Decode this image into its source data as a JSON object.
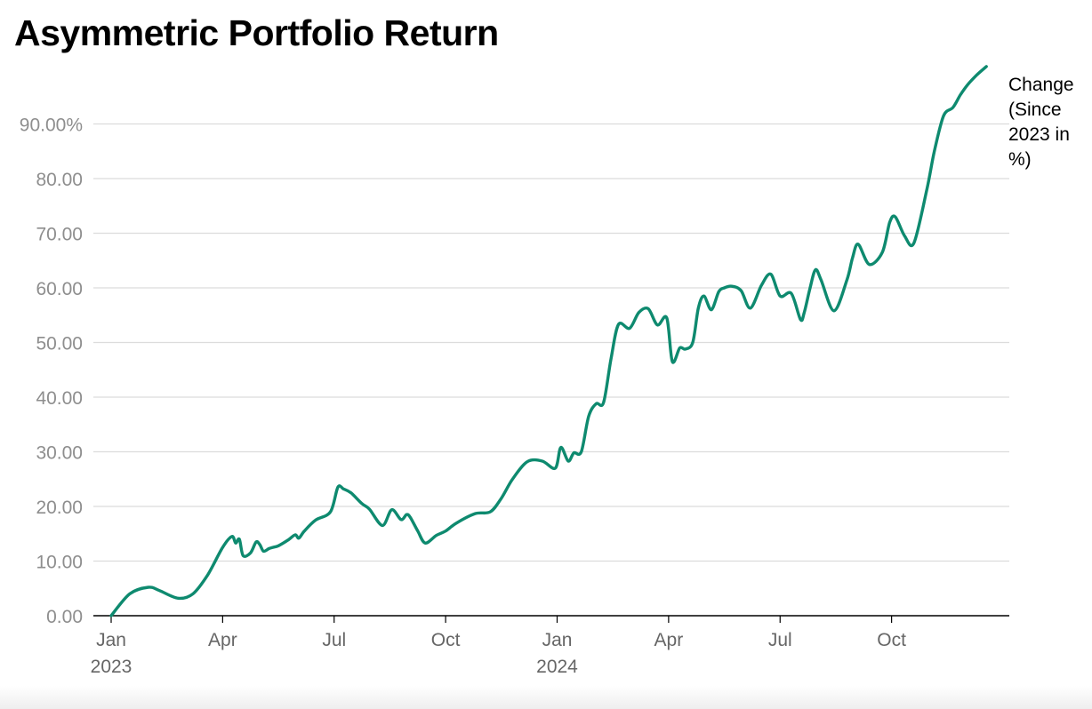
{
  "chart_data": {
    "type": "line",
    "title": "Asymmetric Portfolio Return",
    "xlabel": "",
    "ylabel": "",
    "ylim": [
      0,
      100
    ],
    "yticks": [
      {
        "value": 0,
        "label": "0.00"
      },
      {
        "value": 10,
        "label": "10.00"
      },
      {
        "value": 20,
        "label": "20.00"
      },
      {
        "value": 30,
        "label": "30.00"
      },
      {
        "value": 40,
        "label": "40.00"
      },
      {
        "value": 50,
        "label": "50.00"
      },
      {
        "value": 60,
        "label": "60.00"
      },
      {
        "value": 70,
        "label": "70.00"
      },
      {
        "value": 80,
        "label": "80.00"
      },
      {
        "value": 90,
        "label": "90.00%"
      }
    ],
    "xlim": [
      0,
      24
    ],
    "xticks": [
      {
        "value": 0,
        "label": "Jan",
        "sublabel": "2023"
      },
      {
        "value": 3,
        "label": "Apr"
      },
      {
        "value": 6,
        "label": "Jul"
      },
      {
        "value": 9,
        "label": "Oct"
      },
      {
        "value": 12,
        "label": "Jan",
        "sublabel": "2024"
      },
      {
        "value": 15,
        "label": "Apr"
      },
      {
        "value": 18,
        "label": "Jul"
      },
      {
        "value": 21,
        "label": "Oct"
      }
    ],
    "series": [
      {
        "name": "Change (Since 2023 in %)",
        "label_lines": [
          "Change",
          "(Since",
          "2023 in",
          "%)"
        ],
        "color": "#0e8a6f",
        "x": [
          0,
          0.5,
          1,
          1.3,
          1.8,
          2.2,
          2.6,
          3.0,
          3.25,
          3.35,
          3.45,
          3.55,
          3.75,
          3.9,
          4.0,
          4.1,
          4.25,
          4.35,
          4.5,
          4.75,
          4.95,
          5.05,
          5.2,
          5.5,
          5.9,
          6.1,
          6.25,
          6.45,
          6.75,
          6.95,
          7.3,
          7.55,
          7.8,
          7.95,
          8.05,
          8.25,
          8.45,
          8.75,
          9.0,
          9.3,
          9.8,
          10.2,
          10.5,
          10.8,
          11.2,
          11.6,
          11.95,
          12.1,
          12.3,
          12.45,
          12.65,
          12.85,
          13.05,
          13.25,
          13.45,
          13.65,
          13.95,
          14.2,
          14.45,
          14.7,
          14.95,
          15.1,
          15.3,
          15.45,
          15.65,
          15.8,
          15.95,
          16.15,
          16.35,
          16.5,
          16.7,
          16.95,
          17.2,
          17.5,
          17.75,
          18.0,
          18.3,
          18.55,
          18.65,
          18.8,
          18.95,
          19.1,
          19.45,
          19.8,
          19.95,
          20.1,
          20.4,
          20.75,
          20.95,
          21.1,
          21.35,
          21.6,
          21.95,
          22.15,
          22.4,
          22.65,
          22.85,
          23.05,
          23.3,
          23.55
        ],
        "y": [
          0,
          4,
          5.2,
          4.6,
          3.2,
          4.0,
          7.5,
          12.5,
          14.5,
          13.3,
          14.0,
          11.0,
          11.5,
          13.5,
          13.0,
          11.8,
          12.3,
          12.5,
          12.8,
          13.8,
          14.8,
          14.2,
          15.5,
          17.5,
          19.0,
          23.5,
          23.2,
          22.5,
          20.5,
          19.5,
          16.5,
          19.4,
          17.6,
          18.5,
          18.0,
          15.5,
          13.3,
          14.7,
          15.5,
          17.0,
          18.7,
          19.0,
          21.5,
          25.0,
          28.2,
          28.3,
          27.0,
          30.8,
          28.3,
          29.8,
          30.0,
          36.5,
          38.8,
          39.0,
          47.0,
          53.3,
          52.6,
          55.5,
          56.2,
          53.2,
          54.5,
          46.5,
          49.0,
          48.8,
          50.0,
          56.3,
          58.5,
          56.0,
          59.3,
          60.0,
          60.3,
          59.5,
          56.3,
          60.5,
          62.5,
          58.5,
          59.0,
          54.2,
          55.5,
          59.8,
          63.3,
          61.5,
          55.8,
          61.5,
          65.5,
          68.0,
          64.3,
          66.5,
          72.0,
          73.0,
          69.5,
          68.2,
          78.0,
          85.0,
          91.5,
          93.0,
          95.3,
          97.2,
          99.0,
          100.5
        ]
      }
    ]
  }
}
